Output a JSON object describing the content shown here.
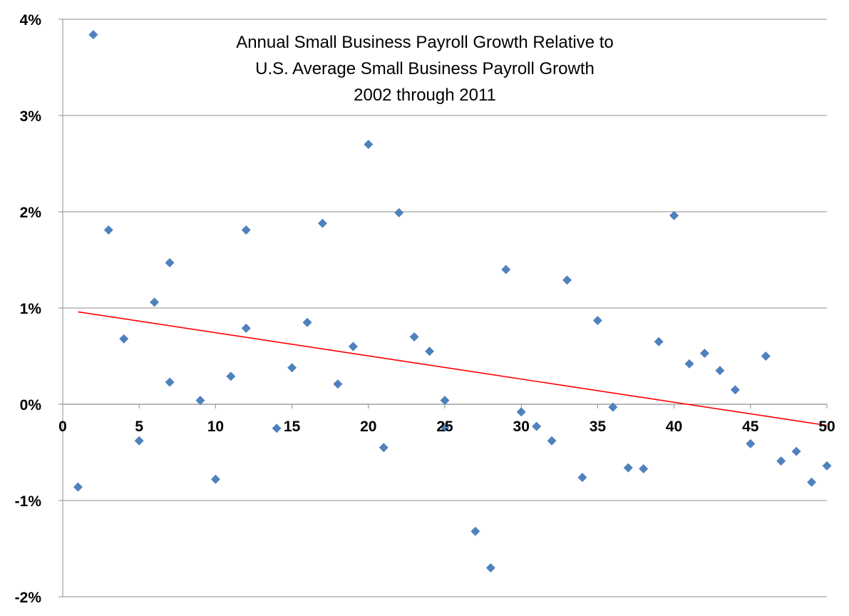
{
  "chart_data": {
    "type": "scatter",
    "title": [
      "Annual Small Business Payroll Growth Relative to",
      "U.S. Average Small Business Payroll Growth",
      "2002 through 2011"
    ],
    "xlabel": "",
    "ylabel": "",
    "xlim": [
      0,
      50
    ],
    "ylim": [
      -2,
      4
    ],
    "x_ticks": [
      0,
      5,
      10,
      15,
      20,
      25,
      30,
      35,
      40,
      45,
      50
    ],
    "x_tick_labels": [
      "0",
      "5",
      "10",
      "15",
      "20",
      "25",
      "30",
      "35",
      "40",
      "45",
      "50"
    ],
    "y_ticks": [
      -2,
      -1,
      0,
      1,
      2,
      3,
      4
    ],
    "y_tick_labels": [
      "-2%",
      "-1%",
      "0%",
      "1%",
      "2%",
      "3%",
      "4%"
    ],
    "y_unit": "%",
    "grid": "horizontal",
    "legend": "none",
    "marker": "diamond",
    "marker_color": "#4F81BD",
    "trendline_color": "#FF0000",
    "points": [
      [
        1,
        -0.86
      ],
      [
        2,
        3.84
      ],
      [
        3,
        1.81
      ],
      [
        4,
        0.68
      ],
      [
        5,
        -0.38
      ],
      [
        6,
        1.06
      ],
      [
        7,
        1.47
      ],
      [
        7,
        0.23
      ],
      [
        9,
        0.04
      ],
      [
        10,
        -0.78
      ],
      [
        11,
        0.29
      ],
      [
        12,
        1.81
      ],
      [
        12,
        0.79
      ],
      [
        14,
        -0.25
      ],
      [
        15,
        0.38
      ],
      [
        16,
        0.85
      ],
      [
        17,
        1.88
      ],
      [
        18,
        0.21
      ],
      [
        19,
        0.6
      ],
      [
        20,
        2.7
      ],
      [
        21,
        -0.45
      ],
      [
        22,
        1.99
      ],
      [
        23,
        0.7
      ],
      [
        24,
        0.55
      ],
      [
        25,
        0.04
      ],
      [
        25,
        -0.24
      ],
      [
        27,
        -1.32
      ],
      [
        28,
        -1.7
      ],
      [
        29,
        1.4
      ],
      [
        30,
        -0.08
      ],
      [
        31,
        -0.23
      ],
      [
        32,
        -0.38
      ],
      [
        33,
        1.29
      ],
      [
        34,
        -0.76
      ],
      [
        35,
        0.87
      ],
      [
        36,
        -0.03
      ],
      [
        37,
        -0.66
      ],
      [
        38,
        -0.67
      ],
      [
        39,
        0.65
      ],
      [
        40,
        1.96
      ],
      [
        41,
        0.42
      ],
      [
        42,
        0.53
      ],
      [
        43,
        0.35
      ],
      [
        44,
        0.15
      ],
      [
        45,
        -0.41
      ],
      [
        46,
        0.5
      ],
      [
        47,
        -0.59
      ],
      [
        48,
        -0.49
      ],
      [
        49,
        -0.81
      ],
      [
        50,
        -0.64
      ]
    ],
    "trendline": {
      "type": "linear",
      "from": [
        1,
        0.96
      ],
      "to": [
        50,
        -0.22
      ]
    }
  }
}
